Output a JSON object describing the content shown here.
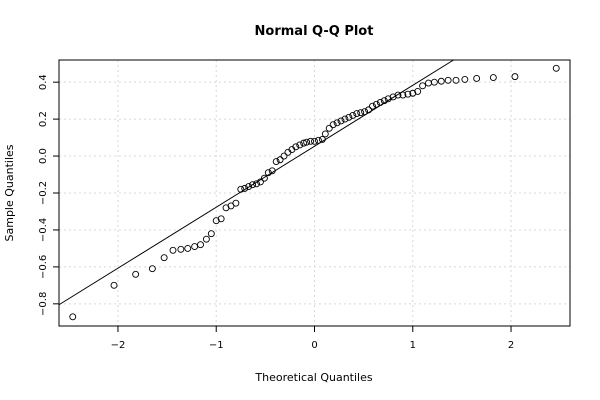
{
  "chart_data": {
    "type": "scatter",
    "title": "Normal Q-Q Plot",
    "xlabel": "Theoretical Quantiles",
    "ylabel": "Sample Quantiles",
    "xlim": [
      -2.6,
      2.6
    ],
    "ylim": [
      -0.92,
      0.52
    ],
    "x_ticks": [
      -2,
      -1,
      0,
      1,
      2
    ],
    "x_tick_labels": [
      "−2",
      "−1",
      "0",
      "1",
      "2"
    ],
    "y_ticks": [
      -0.8,
      -0.6,
      -0.4,
      -0.2,
      0.0,
      0.2,
      0.4
    ],
    "y_tick_labels": [
      "−0.8",
      "−0.6",
      "−0.4",
      "−0.2",
      "0.0",
      "0.2",
      "0.4"
    ],
    "grid": true,
    "reference_line": {
      "intercept": 0.053,
      "slope": 0.33
    },
    "points": {
      "x": [
        -2.46,
        -2.04,
        -1.82,
        -1.65,
        -1.53,
        -1.44,
        -1.36,
        -1.29,
        -1.22,
        -1.16,
        -1.1,
        -1.05,
        -1.0,
        -0.95,
        -0.9,
        -0.85,
        -0.8,
        -0.75,
        -0.71,
        -0.67,
        -0.63,
        -0.59,
        -0.55,
        -0.51,
        -0.47,
        -0.43,
        -0.39,
        -0.35,
        -0.31,
        -0.27,
        -0.23,
        -0.19,
        -0.15,
        -0.11,
        -0.08,
        -0.04,
        0.0,
        0.04,
        0.08,
        0.11,
        0.15,
        0.19,
        0.23,
        0.27,
        0.31,
        0.35,
        0.39,
        0.43,
        0.47,
        0.51,
        0.55,
        0.59,
        0.63,
        0.67,
        0.71,
        0.75,
        0.8,
        0.85,
        0.9,
        0.95,
        1.0,
        1.05,
        1.1,
        1.16,
        1.22,
        1.29,
        1.36,
        1.44,
        1.53,
        1.65,
        1.82,
        2.04,
        2.46
      ],
      "y": [
        -0.87,
        -0.7,
        -0.64,
        -0.61,
        -0.55,
        -0.51,
        -0.505,
        -0.5,
        -0.49,
        -0.48,
        -0.45,
        -0.42,
        -0.35,
        -0.34,
        -0.28,
        -0.27,
        -0.255,
        -0.18,
        -0.175,
        -0.165,
        -0.155,
        -0.15,
        -0.14,
        -0.12,
        -0.09,
        -0.08,
        -0.03,
        -0.02,
        0.0,
        0.02,
        0.035,
        0.05,
        0.06,
        0.07,
        0.075,
        0.08,
        0.08,
        0.085,
        0.09,
        0.12,
        0.15,
        0.17,
        0.18,
        0.19,
        0.2,
        0.21,
        0.22,
        0.23,
        0.235,
        0.24,
        0.25,
        0.27,
        0.28,
        0.29,
        0.3,
        0.31,
        0.32,
        0.33,
        0.33,
        0.335,
        0.34,
        0.35,
        0.38,
        0.395,
        0.4,
        0.405,
        0.41,
        0.41,
        0.415,
        0.42,
        0.425,
        0.43,
        0.475
      ]
    }
  }
}
